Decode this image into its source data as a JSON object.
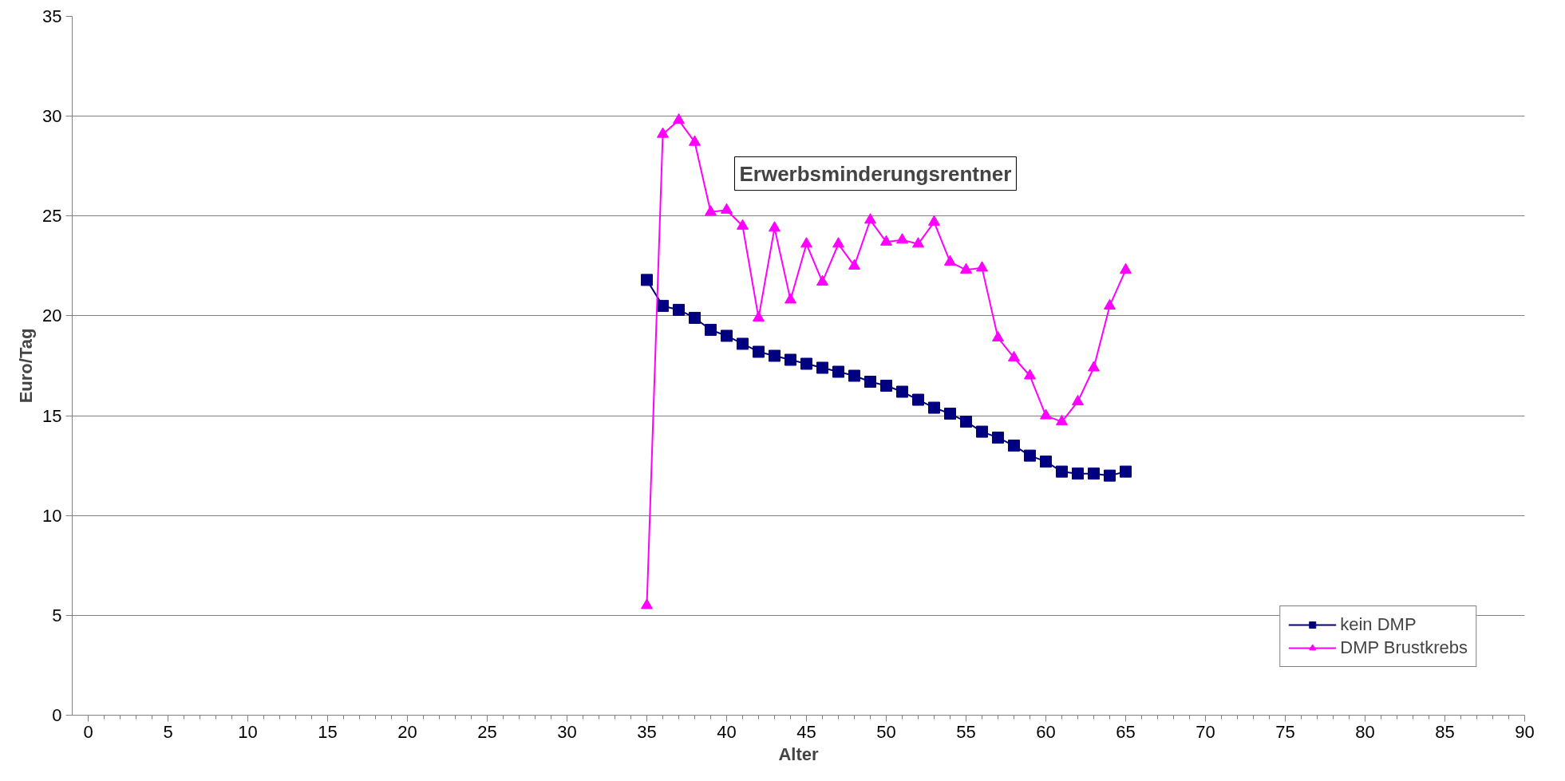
{
  "chart_data": {
    "type": "line",
    "title": "Erwerbsminderungsrentner",
    "xlabel": "Alter",
    "ylabel": "Euro/Tag",
    "x": [
      35,
      36,
      37,
      38,
      39,
      40,
      41,
      42,
      43,
      44,
      45,
      46,
      47,
      48,
      49,
      50,
      51,
      52,
      53,
      54,
      55,
      56,
      57,
      58,
      59,
      60,
      61,
      62,
      63,
      64,
      65
    ],
    "series": [
      {
        "name": "kein DMP",
        "color": "#000080",
        "marker": "square",
        "values": [
          21.8,
          20.5,
          20.3,
          19.9,
          19.3,
          19.0,
          18.6,
          18.2,
          18.0,
          17.8,
          17.6,
          17.4,
          17.2,
          17.0,
          16.7,
          16.5,
          16.2,
          15.8,
          15.4,
          15.1,
          14.7,
          14.2,
          13.9,
          13.5,
          13.0,
          12.7,
          12.2,
          12.1,
          12.1,
          12.0,
          12.2
        ]
      },
      {
        "name": "DMP Brustkrebs",
        "color": "#ff00ff",
        "marker": "triangle",
        "values": [
          5.5,
          29.1,
          29.8,
          28.7,
          25.2,
          25.3,
          24.5,
          19.9,
          24.4,
          20.8,
          23.6,
          21.7,
          23.6,
          22.5,
          24.8,
          23.7,
          23.8,
          23.6,
          24.7,
          22.7,
          22.3,
          22.4,
          18.9,
          17.9,
          17.0,
          15.0,
          14.7,
          15.7,
          17.4,
          20.5,
          22.3
        ]
      }
    ],
    "xlim": [
      -1,
      90
    ],
    "xticks": [
      0,
      5,
      10,
      15,
      20,
      25,
      30,
      35,
      40,
      45,
      50,
      55,
      60,
      65,
      70,
      75,
      80,
      85,
      90
    ],
    "ylim": [
      0,
      35
    ],
    "yticks": [
      0,
      5,
      10,
      15,
      20,
      25,
      30,
      35
    ],
    "grid": "y",
    "legend": "bottom right"
  }
}
